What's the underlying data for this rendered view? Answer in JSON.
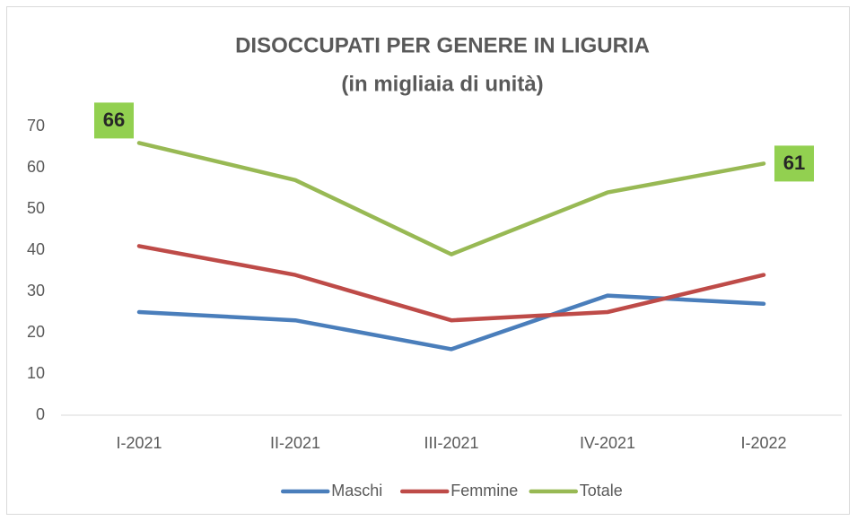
{
  "chart_data": {
    "type": "line",
    "title": "DISOCCUPATI PER GENERE IN LIGURIA",
    "subtitle": "(in migliaia di unità)",
    "categories": [
      "I-2021",
      "II-2021",
      "III-2021",
      "IV-2021",
      "I-2022"
    ],
    "series": [
      {
        "name": "Maschi",
        "color": "#4a7ebb",
        "values": [
          25,
          23,
          16,
          29,
          27
        ]
      },
      {
        "name": "Femmine",
        "color": "#be4b48",
        "values": [
          41,
          34,
          23,
          25,
          34
        ]
      },
      {
        "name": "Totale",
        "color": "#98b954",
        "values": [
          66,
          57,
          39,
          54,
          61
        ],
        "value_labels": [
          "66",
          null,
          null,
          null,
          "61"
        ],
        "label_color": "#92d050"
      }
    ],
    "ylim": [
      0,
      70
    ],
    "yticks": [
      0,
      10,
      20,
      30,
      40,
      50,
      60,
      70
    ],
    "grid": false,
    "legend": "bottom"
  }
}
